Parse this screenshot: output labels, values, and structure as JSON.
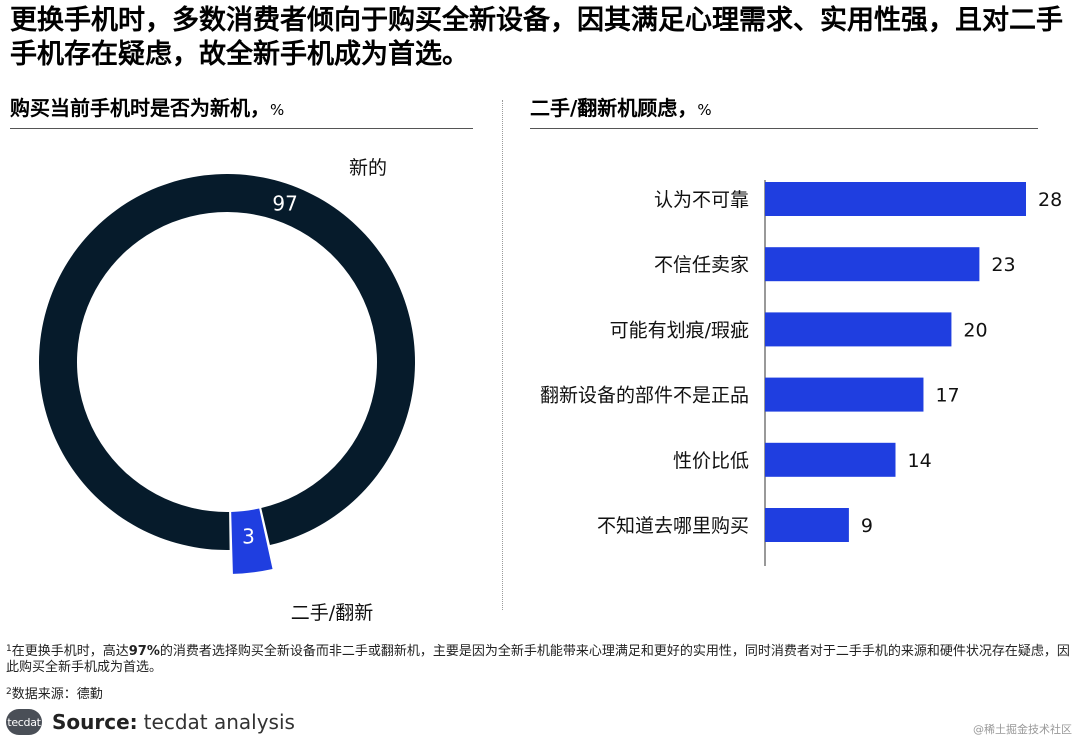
{
  "headline": "更换手机时，多数消费者倾向于购买全新设备，因其满足心理需求、实用性强，且对二手手机存在疑虑，故全新手机成为首选。",
  "colors": {
    "dark": "#061b2b",
    "accent": "#1f3ee0",
    "text": "#111111"
  },
  "chart_data": [
    {
      "type": "pie",
      "title": "购买当前手机时是否为新机",
      "unit": "%",
      "donut": true,
      "slices": [
        {
          "label": "新的",
          "value": 97,
          "color": "#061b2b"
        },
        {
          "label": "二手/翻新",
          "value": 3,
          "color": "#1f3ee0"
        }
      ]
    },
    {
      "type": "bar",
      "orientation": "horizontal",
      "title": "二手/翻新机顾虑",
      "unit": "%",
      "categories": [
        "认为不可靠",
        "不信任卖家",
        "可能有划痕/瑕疵",
        "翻新设备的部件不是正品",
        "性价比低",
        "不知道去哪里购买"
      ],
      "values": [
        28,
        23,
        20,
        17,
        14,
        9
      ],
      "color": "#1f3ee0",
      "xlim": [
        0,
        28
      ]
    }
  ],
  "footnotes": [
    {
      "marker": "1",
      "text_before": "在更换手机时，高达",
      "bold": "97%",
      "text_after": "的消费者选择购买全新设备而非二手或翻新机，主要是因为全新手机能带来心理满足和更好的实用性，同时消费者对于二手手机的来源和硬件状况存在疑虑，因此购买全新手机成为首选。"
    },
    {
      "marker": "2",
      "text": "数据来源：德勤"
    }
  ],
  "source": {
    "logo_text": "tecdat",
    "label": "Source:",
    "text": "tecdat analysis"
  },
  "watermark": "@稀土掘金技术社区"
}
